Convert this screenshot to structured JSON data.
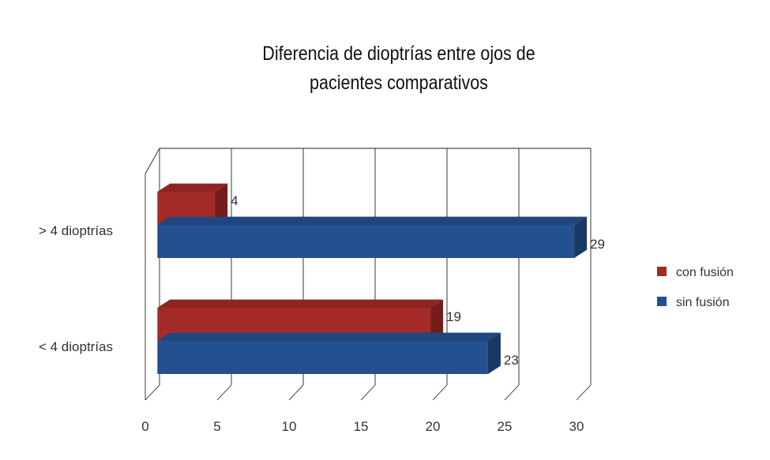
{
  "chart_data": {
    "type": "bar",
    "orientation": "horizontal",
    "three_d": true,
    "title_lines": [
      "Diferencia de dioptrías entre ojos de",
      "pacientes comparativos"
    ],
    "categories": [
      "> 4 dioptrías",
      "< 4 dioptrías"
    ],
    "series": [
      {
        "name": "con fusión",
        "color": "#a32a26",
        "values": [
          4,
          19
        ]
      },
      {
        "name": "sin fusión",
        "color": "#23508f",
        "values": [
          29,
          23
        ]
      }
    ],
    "x_ticks": [
      "0",
      "5",
      "10",
      "15",
      "20",
      "25",
      "30"
    ],
    "xlim": [
      0,
      30
    ],
    "grid": true,
    "legend_position": "right"
  }
}
